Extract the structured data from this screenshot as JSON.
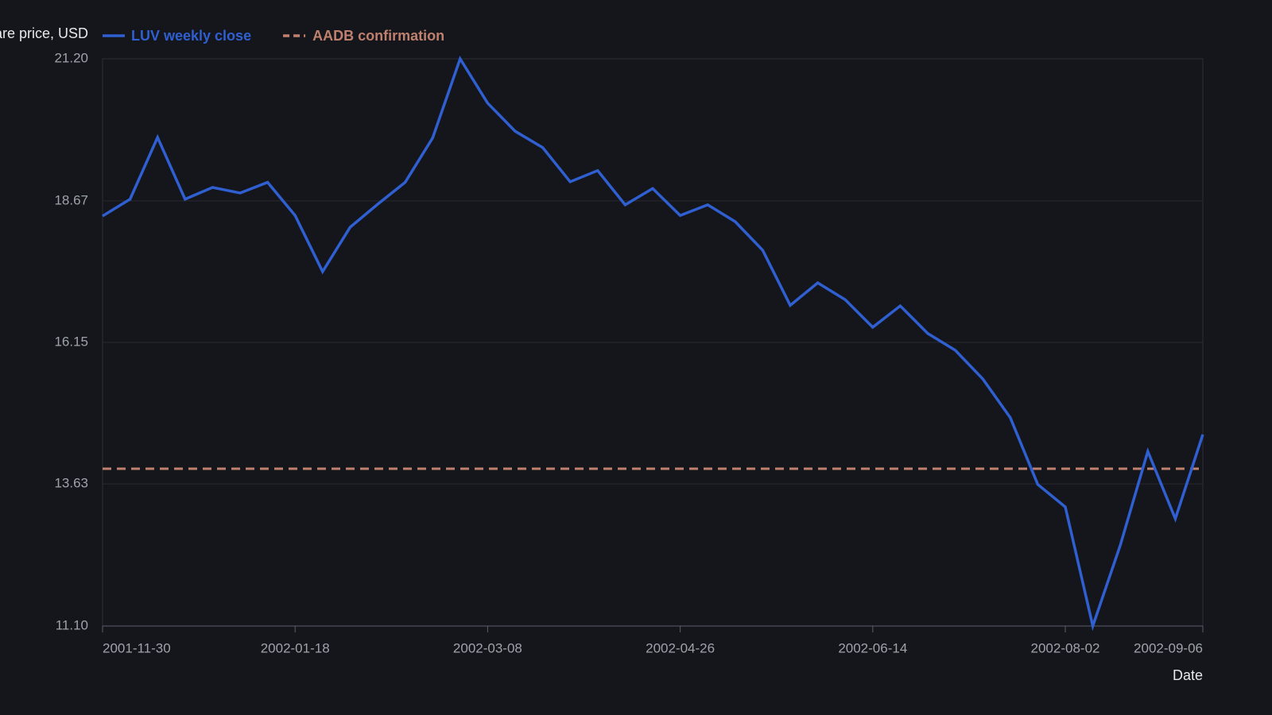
{
  "chart_data": {
    "type": "line",
    "y_label": "Share price, USD",
    "x_label": "Date",
    "x": [
      "2001-11-30",
      "2001-12-07",
      "2001-12-14",
      "2001-12-21",
      "2001-12-28",
      "2002-01-04",
      "2002-01-11",
      "2002-01-18",
      "2002-01-25",
      "2002-02-01",
      "2002-02-08",
      "2002-02-15",
      "2002-02-22",
      "2002-03-01",
      "2002-03-08",
      "2002-03-15",
      "2002-03-22",
      "2002-03-29",
      "2002-04-05",
      "2002-04-12",
      "2002-04-19",
      "2002-04-26",
      "2002-05-03",
      "2002-05-10",
      "2002-05-17",
      "2002-05-24",
      "2002-05-31",
      "2002-06-07",
      "2002-06-14",
      "2002-06-21",
      "2002-06-28",
      "2002-07-05",
      "2002-07-12",
      "2002-07-19",
      "2002-07-26",
      "2002-08-02",
      "2002-08-09",
      "2002-08-16",
      "2002-08-23",
      "2002-08-30",
      "2002-09-06"
    ],
    "series": [
      {
        "name": "LUV weekly close",
        "color": "#2f5fd0",
        "values": [
          18.4,
          18.7,
          19.8,
          18.7,
          18.91,
          18.81,
          19.0,
          18.41,
          17.41,
          18.2,
          18.61,
          19.0,
          19.79,
          21.2,
          20.41,
          19.91,
          19.62,
          19.01,
          19.21,
          18.6,
          18.89,
          18.41,
          18.6,
          18.3,
          17.79,
          16.81,
          17.21,
          16.91,
          16.42,
          16.8,
          16.31,
          16.01,
          15.5,
          14.81,
          13.62,
          13.22,
          11.1,
          12.54,
          14.21,
          13.01,
          14.51
        ]
      }
    ],
    "hline": {
      "name": "AADB confirmation",
      "color": "#c0806e",
      "value": 13.9,
      "dashed": true
    },
    "xlim": [
      "2001-11-30",
      "2002-09-06"
    ],
    "xticks": [
      "2001-11-30",
      "2002-01-18",
      "2002-03-08",
      "2002-04-26",
      "2002-06-14",
      "2002-08-02",
      "2002-09-06"
    ],
    "ylim": [
      11.1,
      21.2
    ],
    "yticks": [
      {
        "value": 11.1,
        "label": "11.10"
      },
      13.63,
      16.15,
      18.67,
      {
        "value": 21.2,
        "label": "21.20"
      }
    ],
    "grid": true
  }
}
